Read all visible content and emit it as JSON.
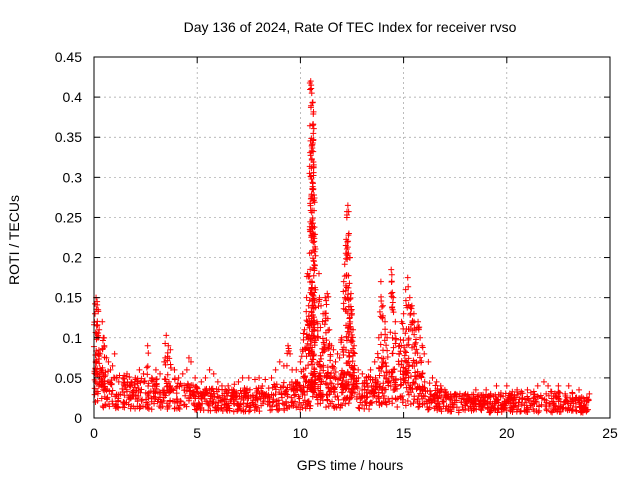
{
  "chart_data": {
    "type": "scatter",
    "title": "Day 136 of 2024, Rate Of TEC Index for receiver rvso",
    "xlabel": "GPS time / hours",
    "ylabel": "ROTI / TECUs",
    "xlim": [
      0,
      25
    ],
    "ylim": [
      0,
      0.45
    ],
    "xticks": [
      0,
      5,
      10,
      15,
      20,
      25
    ],
    "yticks": [
      0,
      0.05,
      0.1,
      0.15,
      0.2,
      0.25,
      0.3,
      0.35,
      0.4,
      0.45
    ],
    "xtick_labels": [
      "0",
      "5",
      "10",
      "15",
      "20",
      "25"
    ],
    "ytick_labels": [
      "0",
      "0.05",
      "0.1",
      "0.15",
      "0.2",
      "0.25",
      "0.3",
      "0.35",
      "0.4",
      "0.45"
    ],
    "grid": true,
    "marker": "+",
    "color": "#ff0000",
    "series": [
      {
        "name": "ROTI",
        "points": [
          [
            0.05,
            0.13
          ],
          [
            0.1,
            0.15
          ],
          [
            0.15,
            0.145
          ],
          [
            0.2,
            0.135
          ],
          [
            0.25,
            0.11
          ],
          [
            0.3,
            0.08
          ],
          [
            0.35,
            0.06
          ],
          [
            0.4,
            0.12
          ],
          [
            0.45,
            0.1
          ],
          [
            0.5,
            0.09
          ],
          [
            0.6,
            0.075
          ],
          [
            0.7,
            0.07
          ],
          [
            0.8,
            0.06
          ],
          [
            0.9,
            0.065
          ],
          [
            1.0,
            0.08
          ],
          [
            1.1,
            0.05
          ],
          [
            1.2,
            0.045
          ],
          [
            1.4,
            0.05
          ],
          [
            1.6,
            0.055
          ],
          [
            1.8,
            0.045
          ],
          [
            2.0,
            0.05
          ],
          [
            2.2,
            0.06
          ],
          [
            2.4,
            0.055
          ],
          [
            2.6,
            0.09
          ],
          [
            2.8,
            0.05
          ],
          [
            3.0,
            0.06
          ],
          [
            3.2,
            0.055
          ],
          [
            3.4,
            0.07
          ],
          [
            3.5,
            0.103
          ],
          [
            3.6,
            0.09
          ],
          [
            3.7,
            0.085
          ],
          [
            3.9,
            0.06
          ],
          [
            4.1,
            0.05
          ],
          [
            4.3,
            0.055
          ],
          [
            4.5,
            0.06
          ],
          [
            4.6,
            0.075
          ],
          [
            4.7,
            0.07
          ],
          [
            4.9,
            0.05
          ],
          [
            5.2,
            0.045
          ],
          [
            5.4,
            0.05
          ],
          [
            5.6,
            0.06
          ],
          [
            5.8,
            0.055
          ],
          [
            6.0,
            0.045
          ],
          [
            6.2,
            0.04
          ],
          [
            6.5,
            0.04
          ],
          [
            6.8,
            0.042
          ],
          [
            7.0,
            0.045
          ],
          [
            7.2,
            0.05
          ],
          [
            7.5,
            0.05
          ],
          [
            7.8,
            0.048
          ],
          [
            8.0,
            0.05
          ],
          [
            8.3,
            0.048
          ],
          [
            8.6,
            0.05
          ],
          [
            8.8,
            0.06
          ],
          [
            9.0,
            0.07
          ],
          [
            9.2,
            0.065
          ],
          [
            9.4,
            0.09
          ],
          [
            9.5,
            0.08
          ],
          [
            9.6,
            0.06
          ],
          [
            9.8,
            0.06
          ],
          [
            10.0,
            0.07
          ],
          [
            10.1,
            0.085
          ],
          [
            10.2,
            0.11
          ],
          [
            10.3,
            0.15
          ],
          [
            10.35,
            0.18
          ],
          [
            10.4,
            0.14
          ],
          [
            10.45,
            0.12
          ],
          [
            10.5,
            0.42
          ],
          [
            10.52,
            0.415
          ],
          [
            10.55,
            0.405
          ],
          [
            10.58,
            0.393
          ],
          [
            10.6,
            0.365
          ],
          [
            10.62,
            0.332
          ],
          [
            10.64,
            0.312
          ],
          [
            10.66,
            0.278
          ],
          [
            10.68,
            0.238
          ],
          [
            10.7,
            0.1
          ],
          [
            10.8,
            0.12
          ],
          [
            10.9,
            0.18
          ],
          [
            11.0,
            0.14
          ],
          [
            11.1,
            0.13
          ],
          [
            11.2,
            0.15
          ],
          [
            11.3,
            0.155
          ],
          [
            11.4,
            0.11
          ],
          [
            11.5,
            0.09
          ],
          [
            11.6,
            0.085
          ],
          [
            11.7,
            0.07
          ],
          [
            11.8,
            0.08
          ],
          [
            11.9,
            0.075
          ],
          [
            12.0,
            0.1
          ],
          [
            12.1,
            0.17
          ],
          [
            12.2,
            0.215
          ],
          [
            12.25,
            0.25
          ],
          [
            12.3,
            0.265
          ],
          [
            12.35,
            0.23
          ],
          [
            12.4,
            0.2
          ],
          [
            12.45,
            0.155
          ],
          [
            12.5,
            0.13
          ],
          [
            12.55,
            0.11
          ],
          [
            12.6,
            0.09
          ],
          [
            12.8,
            0.06
          ],
          [
            13.0,
            0.055
          ],
          [
            13.2,
            0.05
          ],
          [
            13.4,
            0.06
          ],
          [
            13.6,
            0.07
          ],
          [
            13.8,
            0.1
          ],
          [
            13.9,
            0.17
          ],
          [
            14.0,
            0.14
          ],
          [
            14.1,
            0.12
          ],
          [
            14.2,
            0.1
          ],
          [
            14.4,
            0.185
          ],
          [
            14.5,
            0.15
          ],
          [
            14.6,
            0.12
          ],
          [
            14.8,
            0.09
          ],
          [
            14.9,
            0.12
          ],
          [
            15.0,
            0.13
          ],
          [
            15.1,
            0.16
          ],
          [
            15.2,
            0.175
          ],
          [
            15.3,
            0.15
          ],
          [
            15.4,
            0.14
          ],
          [
            15.5,
            0.13
          ],
          [
            15.6,
            0.11
          ],
          [
            15.7,
            0.12
          ],
          [
            15.8,
            0.1
          ],
          [
            15.9,
            0.09
          ],
          [
            16.0,
            0.08
          ],
          [
            16.2,
            0.07
          ],
          [
            16.4,
            0.05
          ],
          [
            16.6,
            0.045
          ],
          [
            16.8,
            0.04
          ],
          [
            17.0,
            0.035
          ],
          [
            17.5,
            0.03
          ],
          [
            18.0,
            0.03
          ],
          [
            18.5,
            0.035
          ],
          [
            19.0,
            0.035
          ],
          [
            19.5,
            0.04
          ],
          [
            20.0,
            0.04
          ],
          [
            20.5,
            0.035
          ],
          [
            21.0,
            0.035
          ],
          [
            21.5,
            0.04
          ],
          [
            21.8,
            0.045
          ],
          [
            22.0,
            0.04
          ],
          [
            22.5,
            0.04
          ],
          [
            23.0,
            0.04
          ],
          [
            23.5,
            0.035
          ],
          [
            24.0,
            0.03
          ]
        ],
        "baseline": [
          [
            0.0,
            0.04
          ],
          [
            1.0,
            0.035
          ],
          [
            2.0,
            0.03
          ],
          [
            3.0,
            0.03
          ],
          [
            4.0,
            0.03
          ],
          [
            5.0,
            0.025
          ],
          [
            6.0,
            0.022
          ],
          [
            7.0,
            0.022
          ],
          [
            8.0,
            0.024
          ],
          [
            9.0,
            0.026
          ],
          [
            10.0,
            0.03
          ],
          [
            11.0,
            0.035
          ],
          [
            12.0,
            0.035
          ],
          [
            13.0,
            0.03
          ],
          [
            14.0,
            0.035
          ],
          [
            15.0,
            0.04
          ],
          [
            16.0,
            0.03
          ],
          [
            17.0,
            0.02
          ],
          [
            18.0,
            0.018
          ],
          [
            19.0,
            0.018
          ],
          [
            20.0,
            0.02
          ],
          [
            21.0,
            0.02
          ],
          [
            22.0,
            0.02
          ],
          [
            23.0,
            0.02
          ],
          [
            24.0,
            0.018
          ]
        ]
      }
    ]
  }
}
